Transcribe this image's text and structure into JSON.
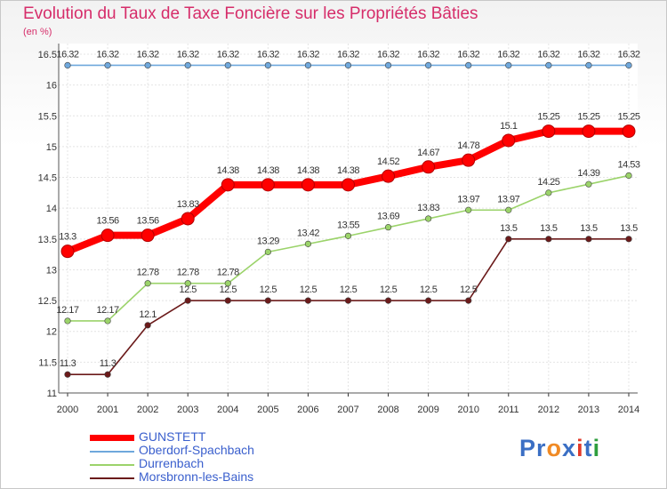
{
  "chart_data": {
    "type": "line",
    "title": "Evolution du Taux de Taxe Foncière sur les Propriétés Bâties",
    "unit_label": "(en %)",
    "x": [
      "2000",
      "2001",
      "2002",
      "2003",
      "2004",
      "2005",
      "2006",
      "2007",
      "2008",
      "2009",
      "2010",
      "2011",
      "2012",
      "2013",
      "2014"
    ],
    "ylim": [
      11,
      16.5
    ],
    "yticks": [
      "11",
      "11.5",
      "12",
      "12.5",
      "13",
      "13.5",
      "14",
      "14.5",
      "15",
      "15.5",
      "16",
      "16.5"
    ],
    "series": [
      {
        "name": "GUNSTETT",
        "color": "#ff0000",
        "values": [
          13.3,
          13.56,
          13.56,
          13.83,
          14.38,
          14.38,
          14.38,
          14.38,
          14.52,
          14.67,
          14.78,
          15.1,
          15.25,
          15.25,
          15.25
        ],
        "labels": [
          "13.3",
          "13.56",
          "13.56",
          "13.83",
          "14.38",
          "14.38",
          "14.38",
          "14.38",
          "14.52",
          "14.67",
          "14.78",
          "15.1",
          "15.25",
          "15.25",
          "15.25"
        ]
      },
      {
        "name": "Oberdorf-Spachbach",
        "color": "#6fa8dc",
        "values": [
          16.32,
          16.32,
          16.32,
          16.32,
          16.32,
          16.32,
          16.32,
          16.32,
          16.32,
          16.32,
          16.32,
          16.32,
          16.32,
          16.32,
          16.32
        ],
        "labels": [
          "16.32",
          "16.32",
          "16.32",
          "16.32",
          "16.32",
          "16.32",
          "16.32",
          "16.32",
          "16.32",
          "16.32",
          "16.32",
          "16.32",
          "16.32",
          "16.32",
          "16.32"
        ]
      },
      {
        "name": "Durrenbach",
        "color": "#9bd36a",
        "values": [
          12.17,
          12.17,
          12.78,
          12.78,
          12.78,
          13.29,
          13.42,
          13.55,
          13.69,
          13.83,
          13.97,
          13.97,
          14.25,
          14.39,
          14.53
        ],
        "labels": [
          "12.17",
          "12.17",
          "12.78",
          "12.78",
          "12.78",
          "13.29",
          "13.42",
          "13.55",
          "13.69",
          "13.83",
          "13.97",
          "13.97",
          "14.25",
          "14.39",
          "14.53"
        ]
      },
      {
        "name": "Morsbronn-les-Bains",
        "color": "#6b1a1a",
        "values": [
          11.3,
          11.3,
          12.1,
          12.5,
          12.5,
          12.5,
          12.5,
          12.5,
          12.5,
          12.5,
          12.5,
          13.5,
          13.5,
          13.5,
          13.5
        ],
        "labels": [
          "11.3",
          "11.3",
          "12.1",
          "12.5",
          "12.5",
          "12.5",
          "12.5",
          "12.5",
          "12.5",
          "12.5",
          "12.5",
          "13.5",
          "13.5",
          "13.5",
          "13.5"
        ]
      }
    ],
    "legend_position": "bottom-left",
    "grid": true
  },
  "brand": {
    "letters": [
      "P",
      "r",
      "o",
      "x",
      "i",
      "t",
      "i"
    ],
    "colors": [
      "#3b6fc4",
      "#3b6fc4",
      "#f08a24",
      "#3b6fc4",
      "#e23a2a",
      "#3b6fc4",
      "#2e9e3e"
    ]
  }
}
